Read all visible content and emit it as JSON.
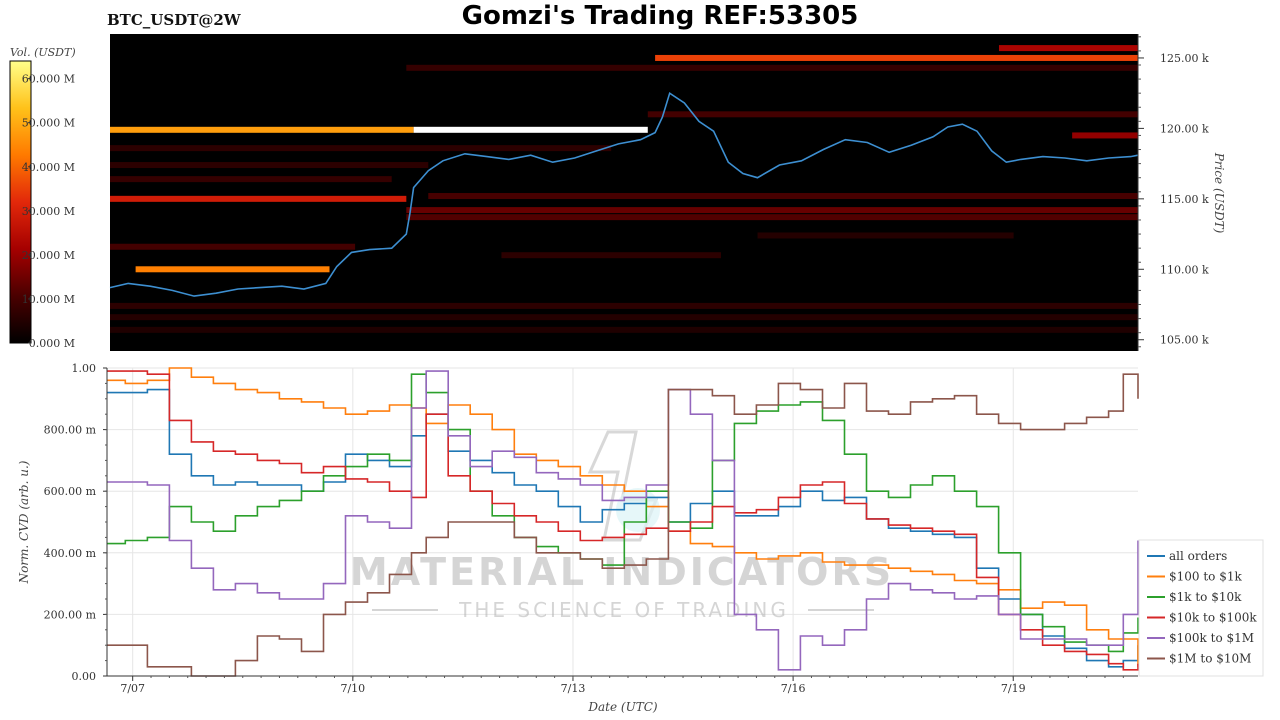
{
  "header": {
    "symbol": "BTC_USDT@2W",
    "title": "Gomzi's Trading REF:53305"
  },
  "watermark": {
    "line1": "MATERIAL INDICATORS",
    "line2": "THE SCIENCE OF TRADING"
  },
  "chart_data": [
    {
      "type": "heatmap",
      "title": "",
      "ylabel": "Price (USDT)",
      "ylim": [
        104200,
        126700
      ],
      "y_ticks": [
        105000,
        110000,
        115000,
        120000,
        125000
      ],
      "y_tick_labels": [
        "105.00 k",
        "110.00 k",
        "115.00 k",
        "120.00 k",
        "125.00 k"
      ],
      "colorbar": {
        "label": "Vol. (USDT)",
        "range": [
          0,
          64000000
        ],
        "ticks": [
          0,
          10000000,
          20000000,
          30000000,
          40000000,
          50000000,
          60000000
        ],
        "tick_labels": [
          "0.000 M",
          "10.000 M",
          "20.000 M",
          "30.000 M",
          "40.000 M",
          "50.000 M",
          "60.000 M"
        ],
        "colors": [
          "#000000",
          "#4a0000",
          "#a50000",
          "#e2280a",
          "#ff7a00",
          "#ffc21a",
          "#ffff8a"
        ]
      },
      "xlim": [
        6.65,
        20.7
      ],
      "price_series": {
        "color": "#3d8fd1",
        "x": [
          6.65,
          6.9,
          7.2,
          7.5,
          7.8,
          8.1,
          8.4,
          8.7,
          9.0,
          9.3,
          9.6,
          9.75,
          9.95,
          10.2,
          10.5,
          10.7,
          10.75,
          10.8,
          10.9,
          11.0,
          11.2,
          11.5,
          11.8,
          12.1,
          12.4,
          12.7,
          13.0,
          13.3,
          13.6,
          13.9,
          14.1,
          14.2,
          14.3,
          14.5,
          14.7,
          14.9,
          15.1,
          15.3,
          15.5,
          15.8,
          16.1,
          16.4,
          16.7,
          17.0,
          17.3,
          17.6,
          17.9,
          18.1,
          18.3,
          18.5,
          18.7,
          18.9,
          19.1,
          19.4,
          19.7,
          20.0,
          20.3,
          20.6,
          20.7
        ],
        "y": [
          108700,
          109000,
          108800,
          108500,
          108100,
          108300,
          108600,
          108700,
          108800,
          108600,
          109000,
          110200,
          111200,
          111400,
          111500,
          112500,
          114000,
          115800,
          116400,
          117000,
          117700,
          118200,
          118000,
          117800,
          118100,
          117600,
          117900,
          118400,
          118900,
          119200,
          119700,
          120800,
          122500,
          121800,
          120500,
          119800,
          117600,
          116800,
          116500,
          117400,
          117700,
          118500,
          119200,
          119000,
          118300,
          118800,
          119400,
          120100,
          120300,
          119800,
          118400,
          117600,
          117800,
          118000,
          117900,
          117700,
          117900,
          118000,
          118100
        ]
      },
      "walls": [
        {
          "price": 125000,
          "x_start": 14.1,
          "x_end": 20.7,
          "level": 0.55
        },
        {
          "price": 125700,
          "x_start": 18.8,
          "x_end": 20.7,
          "level": 0.35
        },
        {
          "price": 119900,
          "x_start": 6.65,
          "x_end": 10.8,
          "level": 0.75
        },
        {
          "price": 119900,
          "x_start": 10.8,
          "x_end": 14.0,
          "level": 1.0
        },
        {
          "price": 115000,
          "x_start": 6.65,
          "x_end": 10.7,
          "level": 0.45
        },
        {
          "price": 110000,
          "x_start": 7.0,
          "x_end": 9.65,
          "level": 0.68
        },
        {
          "price": 114200,
          "x_start": 10.7,
          "x_end": 20.7,
          "level": 0.22
        },
        {
          "price": 113700,
          "x_start": 10.7,
          "x_end": 20.7,
          "level": 0.18
        },
        {
          "price": 115200,
          "x_start": 11.0,
          "x_end": 20.7,
          "level": 0.16
        },
        {
          "price": 124300,
          "x_start": 10.7,
          "x_end": 20.7,
          "level": 0.12
        },
        {
          "price": 121000,
          "x_start": 14.0,
          "x_end": 20.7,
          "level": 0.15
        },
        {
          "price": 119500,
          "x_start": 19.8,
          "x_end": 20.7,
          "level": 0.3
        },
        {
          "price": 111600,
          "x_start": 6.65,
          "x_end": 10.0,
          "level": 0.15
        },
        {
          "price": 111000,
          "x_start": 12.0,
          "x_end": 15.0,
          "level": 0.1
        },
        {
          "price": 107400,
          "x_start": 6.65,
          "x_end": 20.7,
          "level": 0.1
        },
        {
          "price": 106600,
          "x_start": 6.65,
          "x_end": 20.7,
          "level": 0.08
        },
        {
          "price": 105700,
          "x_start": 6.65,
          "x_end": 20.7,
          "level": 0.07
        },
        {
          "price": 112400,
          "x_start": 15.5,
          "x_end": 19.0,
          "level": 0.08
        },
        {
          "price": 116400,
          "x_start": 6.65,
          "x_end": 10.5,
          "level": 0.12
        },
        {
          "price": 117400,
          "x_start": 6.65,
          "x_end": 11.0,
          "level": 0.1
        },
        {
          "price": 118600,
          "x_start": 6.65,
          "x_end": 13.5,
          "level": 0.1
        }
      ]
    },
    {
      "type": "line",
      "title": "",
      "xlabel": "Date (UTC)",
      "ylabel": "Norm. CVD (arb. u.)",
      "xlim": [
        6.65,
        20.7
      ],
      "ylim": [
        0,
        1
      ],
      "x_ticks": [
        7,
        10,
        13,
        16,
        19
      ],
      "x_tick_labels": [
        "7/07",
        "7/10",
        "7/13",
        "7/16",
        "7/19"
      ],
      "y_ticks": [
        0,
        0.2,
        0.4,
        0.6,
        0.8,
        1.0
      ],
      "y_tick_labels": [
        "0.00",
        "200.00 m",
        "400.00 m",
        "600.00 m",
        "800.00 m",
        "1.00"
      ],
      "grid": true,
      "legend_position": "right",
      "x": [
        6.65,
        6.9,
        7.2,
        7.5,
        7.8,
        8.1,
        8.4,
        8.7,
        9.0,
        9.3,
        9.6,
        9.9,
        10.2,
        10.5,
        10.8,
        11.0,
        11.3,
        11.6,
        11.9,
        12.2,
        12.5,
        12.8,
        13.1,
        13.4,
        13.7,
        14.0,
        14.3,
        14.6,
        14.9,
        15.2,
        15.5,
        15.8,
        16.1,
        16.4,
        16.7,
        17.0,
        17.3,
        17.6,
        17.9,
        18.2,
        18.5,
        18.8,
        19.1,
        19.4,
        19.7,
        20.0,
        20.3,
        20.5,
        20.7
      ],
      "series": [
        {
          "name": "all orders",
          "color": "#1f77b4",
          "values": [
            0.92,
            0.92,
            0.93,
            0.72,
            0.65,
            0.62,
            0.63,
            0.62,
            0.62,
            0.6,
            0.63,
            0.72,
            0.7,
            0.68,
            0.78,
            0.85,
            0.73,
            0.7,
            0.66,
            0.62,
            0.6,
            0.55,
            0.5,
            0.54,
            0.56,
            0.58,
            0.5,
            0.56,
            0.6,
            0.52,
            0.52,
            0.55,
            0.6,
            0.57,
            0.58,
            0.51,
            0.48,
            0.47,
            0.46,
            0.45,
            0.35,
            0.25,
            0.2,
            0.13,
            0.09,
            0.05,
            0.03,
            0.05,
            0.1
          ]
        },
        {
          "name": "$100 to $1k",
          "color": "#ff7f0e",
          "values": [
            0.96,
            0.95,
            0.96,
            1.0,
            0.97,
            0.95,
            0.93,
            0.92,
            0.9,
            0.89,
            0.87,
            0.85,
            0.86,
            0.88,
            0.87,
            0.82,
            0.88,
            0.85,
            0.8,
            0.72,
            0.7,
            0.68,
            0.65,
            0.62,
            0.6,
            0.55,
            0.47,
            0.43,
            0.42,
            0.4,
            0.38,
            0.39,
            0.4,
            0.37,
            0.36,
            0.36,
            0.35,
            0.34,
            0.33,
            0.31,
            0.3,
            0.28,
            0.22,
            0.24,
            0.23,
            0.15,
            0.12,
            0.12,
            0.03
          ]
        },
        {
          "name": "$1k to $10k",
          "color": "#2ca02c",
          "values": [
            0.43,
            0.44,
            0.45,
            0.55,
            0.5,
            0.47,
            0.52,
            0.55,
            0.57,
            0.6,
            0.65,
            0.68,
            0.72,
            0.7,
            0.98,
            0.92,
            0.8,
            0.6,
            0.52,
            0.45,
            0.42,
            0.4,
            0.38,
            0.36,
            0.5,
            0.6,
            0.5,
            0.48,
            0.7,
            0.82,
            0.86,
            0.88,
            0.89,
            0.83,
            0.72,
            0.6,
            0.58,
            0.62,
            0.65,
            0.6,
            0.55,
            0.4,
            0.2,
            0.16,
            0.11,
            0.1,
            0.08,
            0.14,
            0.19
          ]
        },
        {
          "name": "$10k to $100k",
          "color": "#d62728",
          "values": [
            0.99,
            0.99,
            0.98,
            0.83,
            0.76,
            0.73,
            0.72,
            0.7,
            0.69,
            0.66,
            0.68,
            0.64,
            0.63,
            0.6,
            0.58,
            0.85,
            0.65,
            0.6,
            0.56,
            0.52,
            0.5,
            0.47,
            0.44,
            0.45,
            0.46,
            0.48,
            0.47,
            0.5,
            0.55,
            0.53,
            0.54,
            0.58,
            0.62,
            0.63,
            0.56,
            0.51,
            0.49,
            0.48,
            0.47,
            0.46,
            0.32,
            0.2,
            0.15,
            0.1,
            0.08,
            0.07,
            0.04,
            0.02,
            0.04
          ]
        },
        {
          "name": "$100k to $1M",
          "color": "#9467bd",
          "values": [
            0.63,
            0.63,
            0.62,
            0.44,
            0.35,
            0.28,
            0.3,
            0.27,
            0.25,
            0.25,
            0.3,
            0.52,
            0.5,
            0.48,
            0.87,
            0.99,
            0.78,
            0.68,
            0.73,
            0.71,
            0.66,
            0.64,
            0.62,
            0.57,
            0.58,
            0.62,
            0.93,
            0.85,
            0.7,
            0.2,
            0.15,
            0.02,
            0.13,
            0.1,
            0.15,
            0.25,
            0.3,
            0.28,
            0.27,
            0.25,
            0.26,
            0.2,
            0.12,
            0.12,
            0.12,
            0.1,
            0.1,
            0.2,
            0.44
          ]
        },
        {
          "name": "$1M to $10M",
          "color": "#8c564b",
          "values": [
            0.1,
            0.1,
            0.03,
            0.03,
            0.0,
            0.0,
            0.05,
            0.13,
            0.12,
            0.08,
            0.2,
            0.24,
            0.27,
            0.33,
            0.4,
            0.45,
            0.5,
            0.5,
            0.5,
            0.45,
            0.4,
            0.4,
            0.38,
            0.35,
            0.36,
            0.38,
            0.93,
            0.93,
            0.91,
            0.85,
            0.88,
            0.95,
            0.93,
            0.87,
            0.95,
            0.86,
            0.85,
            0.89,
            0.9,
            0.91,
            0.85,
            0.82,
            0.8,
            0.8,
            0.82,
            0.84,
            0.86,
            0.98,
            0.9
          ]
        }
      ]
    }
  ]
}
